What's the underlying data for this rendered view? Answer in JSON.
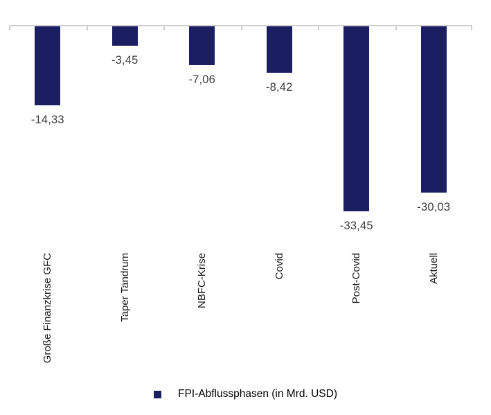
{
  "chart_data": {
    "type": "bar",
    "orientation": "vertical",
    "title": "",
    "categories": [
      "Große Finanzkrise GFC",
      "Taper Tandrum",
      "NBFC-Krise",
      "Covid",
      "Post-Covid",
      "Aktuell"
    ],
    "values": [
      -14.33,
      -3.45,
      -7.06,
      -8.42,
      -33.45,
      -30.03
    ],
    "value_labels": [
      "-14,33",
      "-3,45",
      "-7,06",
      "-8,42",
      "-33,45",
      "-30,03"
    ],
    "legend_label": "FPI-Abflussphasen (in Mrd. USD)",
    "legend_position": "bottom",
    "ylim": [
      -37,
      0
    ],
    "grid": false,
    "bar_color": "#1B1F62",
    "axis_color": "#CFCFCF",
    "value_label_color": "#3C3C3C",
    "category_label_color": "#1A1A1A"
  }
}
